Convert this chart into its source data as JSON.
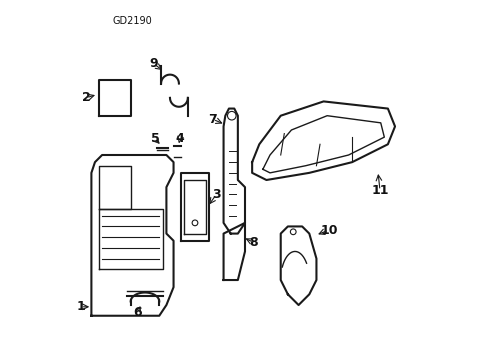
{
  "diagram_code": "GD2190",
  "bg_color": "#ffffff",
  "line_color": "#1a1a1a",
  "label_color": "#111111",
  "title_fontsize": 7,
  "label_fontsize": 9
}
